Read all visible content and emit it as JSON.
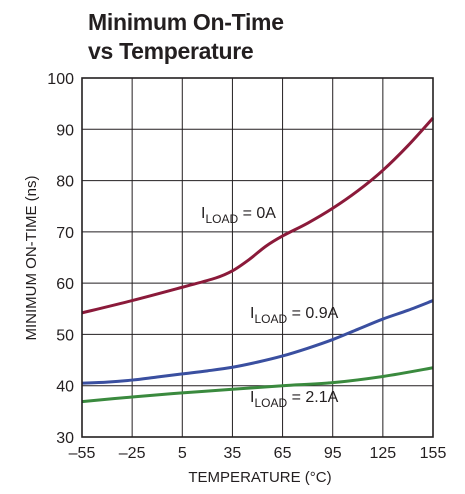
{
  "chart_data": {
    "type": "line",
    "title_line1": "Minimum On-Time",
    "title_line2": "vs Temperature",
    "xlabel": "TEMPERATURE (°C)",
    "ylabel": "MINIMUM ON-TIME (ns)",
    "xlim": [
      -55,
      155
    ],
    "ylim": [
      30,
      100
    ],
    "grid": true,
    "x_ticks": [
      -55,
      -25,
      5,
      35,
      65,
      95,
      125,
      155
    ],
    "x_tick_labels": [
      "–55",
      "–25",
      "5",
      "35",
      "65",
      "95",
      "125",
      "155"
    ],
    "y_ticks": [
      30,
      40,
      50,
      60,
      70,
      80,
      90,
      100
    ],
    "y_tick_labels": [
      "30",
      "40",
      "50",
      "60",
      "70",
      "80",
      "90",
      "100"
    ],
    "series": [
      {
        "color": "#8b1a3a",
        "x": [
          -55,
          -25,
          5,
          25,
          35,
          45,
          55,
          65,
          80,
          95,
          110,
          125,
          140,
          155
        ],
        "y": [
          54.2,
          56.6,
          59.2,
          61.0,
          62.4,
          64.6,
          67.2,
          69.2,
          71.7,
          74.6,
          78.0,
          82.0,
          86.8,
          92.2
        ]
      },
      {
        "color": "#3a4fa0",
        "x": [
          -55,
          -40,
          -25,
          -10,
          5,
          20,
          35,
          50,
          65,
          80,
          95,
          110,
          125,
          140,
          155
        ],
        "y": [
          40.5,
          40.7,
          41.1,
          41.7,
          42.3,
          42.9,
          43.6,
          44.6,
          45.8,
          47.3,
          49.0,
          51.0,
          53.0,
          54.7,
          56.6
        ]
      },
      {
        "color": "#3a8a3e",
        "x": [
          -55,
          -25,
          5,
          35,
          65,
          95,
          125,
          155
        ],
        "y": [
          36.9,
          37.8,
          38.6,
          39.3,
          40.0,
          40.6,
          41.8,
          43.5
        ]
      }
    ],
    "annotations": [
      {
        "main": "I",
        "sub": "LOAD",
        "rest": " = 0A"
      },
      {
        "main": "I",
        "sub": "LOAD",
        "rest": " = 0.9A"
      },
      {
        "main": "I",
        "sub": "LOAD",
        "rest": " = 2.1A"
      }
    ]
  }
}
